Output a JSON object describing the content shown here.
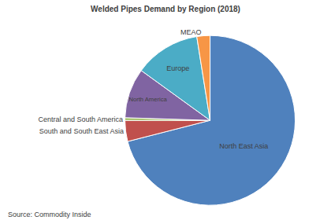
{
  "chart_data": {
    "type": "pie",
    "title": "Welded Pipes Demand by Region (2018)",
    "categories": [
      "North East Asia",
      "South and South East Asia",
      "Central and South America",
      "North America",
      "Europe",
      "MEAO"
    ],
    "values": [
      71,
      4,
      0.5,
      9.5,
      12.5,
      2.5
    ],
    "colors": [
      "#4F81BD",
      "#C0504D",
      "#9BBB59",
      "#8064A2",
      "#4BACC6",
      "#F79646"
    ],
    "annotations": [
      "Source: Commodity Inside"
    ]
  }
}
